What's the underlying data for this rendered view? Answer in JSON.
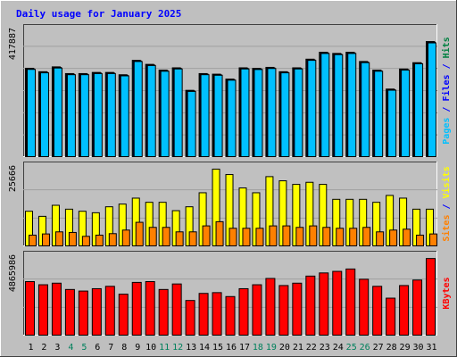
{
  "chart_data": {
    "type": "bar",
    "title": "Daily usage for January 2025",
    "categories": [
      "1",
      "2",
      "3",
      "4",
      "5",
      "6",
      "7",
      "8",
      "9",
      "10",
      "11",
      "12",
      "13",
      "14",
      "15",
      "16",
      "17",
      "18",
      "19",
      "20",
      "21",
      "22",
      "23",
      "24",
      "25",
      "26",
      "27",
      "28",
      "29",
      "30",
      "31"
    ],
    "weekend_days": [
      4,
      5,
      11,
      12,
      18,
      19,
      25,
      26
    ],
    "panels": [
      {
        "name": "hits-files-pages",
        "ymax_label": "417887",
        "ymax": 417887,
        "ylabel_parts": [
          {
            "text": "Pages",
            "color": "#00c0ff"
          },
          {
            "text": " / ",
            "color": "#0000ff"
          },
          {
            "text": "Files",
            "color": "#0000ff"
          },
          {
            "text": " / ",
            "color": "#0000ff"
          },
          {
            "text": "Hits",
            "color": "#008040"
          }
        ],
        "series": [
          {
            "key": "hits",
            "color": "#008080",
            "values": [
              302500,
              290700,
              307300,
              284300,
              284300,
              288200,
              288200,
              280300,
              329600,
              315800,
              296100,
              304000,
              227000,
              284300,
              282300,
              265400,
              304000,
              302000,
              305600,
              290700,
              304000,
              333600,
              357300,
              353300,
              357300,
              325700,
              296100,
              231300,
              300000,
              321600,
              393900
            ]
          },
          {
            "key": "files",
            "color": "#0000ff",
            "values": [
              300500,
              288700,
              305300,
              282300,
              282300,
              286200,
              286200,
              278300,
              327600,
              313800,
              294100,
              302000,
              225000,
              282300,
              280300,
              263400,
              302000,
              300000,
              303600,
              288700,
              302000,
              331600,
              355300,
              351300,
              355300,
              323700,
              294100,
              229300,
              298000,
              319600,
              391900
            ]
          },
          {
            "key": "pages",
            "color": "#00c0ff",
            "values": [
              298600,
              286900,
              303300,
              280500,
              280500,
              284400,
              284400,
              276500,
              325600,
              311900,
              292300,
              300100,
              223200,
              280500,
              278500,
              261700,
              300100,
              298200,
              301700,
              286900,
              300100,
              329600,
              353100,
              349200,
              353100,
              321800,
              292300,
              227400,
              296200,
              317800,
              389300
            ]
          }
        ]
      },
      {
        "name": "visits-sites",
        "ymax_label": "25666",
        "ymax": 25666,
        "ylabel_parts": [
          {
            "text": "Sites",
            "color": "#ff8000"
          },
          {
            "text": " / ",
            "color": "#0000ff"
          },
          {
            "text": "Visits",
            "color": "#ffff00"
          }
        ],
        "series": [
          {
            "key": "visits",
            "color": "#ffff00",
            "values": [
              11600,
              9900,
              13600,
              12300,
              11600,
              11100,
              13100,
              14000,
              16000,
              14600,
              14600,
              11800,
              13100,
              17800,
              25700,
              23900,
              19400,
              17800,
              23200,
              21800,
              20600,
              21300,
              20600,
              15600,
              15600,
              15600,
              14600,
              16900,
              16000,
              12300,
              12300
            ]
          },
          {
            "key": "sites",
            "color": "#ff8000",
            "values": [
              3600,
              4000,
              4700,
              4500,
              3200,
              3600,
              4100,
              5300,
              7900,
              6200,
              6200,
              4700,
              4700,
              6700,
              8100,
              5900,
              5900,
              5900,
              6700,
              6700,
              6200,
              6700,
              6200,
              5900,
              5900,
              6200,
              4700,
              5300,
              5600,
              3600,
              4000
            ]
          }
        ]
      },
      {
        "name": "kbytes",
        "ymax_label": "4865986",
        "ymax": 4865986,
        "ylabel_parts": [
          {
            "text": "KBytes",
            "color": "#ff0000"
          }
        ],
        "series": [
          {
            "key": "kbytes",
            "color": "#ff0000",
            "values": [
              3400000,
              3200000,
              3300000,
              2900000,
              2800000,
              2950000,
              3100000,
              2600000,
              3350000,
              3400000,
              2900000,
              3250000,
              2200000,
              2650000,
              2700000,
              2450000,
              2950000,
              3200000,
              3600000,
              3150000,
              3300000,
              3750000,
              3950000,
              4050000,
              4200000,
              3550000,
              3100000,
              2350000,
              3150000,
              3500000,
              4865986
            ]
          }
        ]
      }
    ]
  },
  "colors": {
    "page_bg": "#bfbfbf",
    "plot_bg": "#c0c0c0",
    "gridline": "#a0a0a0",
    "title": "#0000ff",
    "weekday_label": "#000000",
    "weekend_label": "#00805c",
    "bar_outline": "#000000"
  }
}
